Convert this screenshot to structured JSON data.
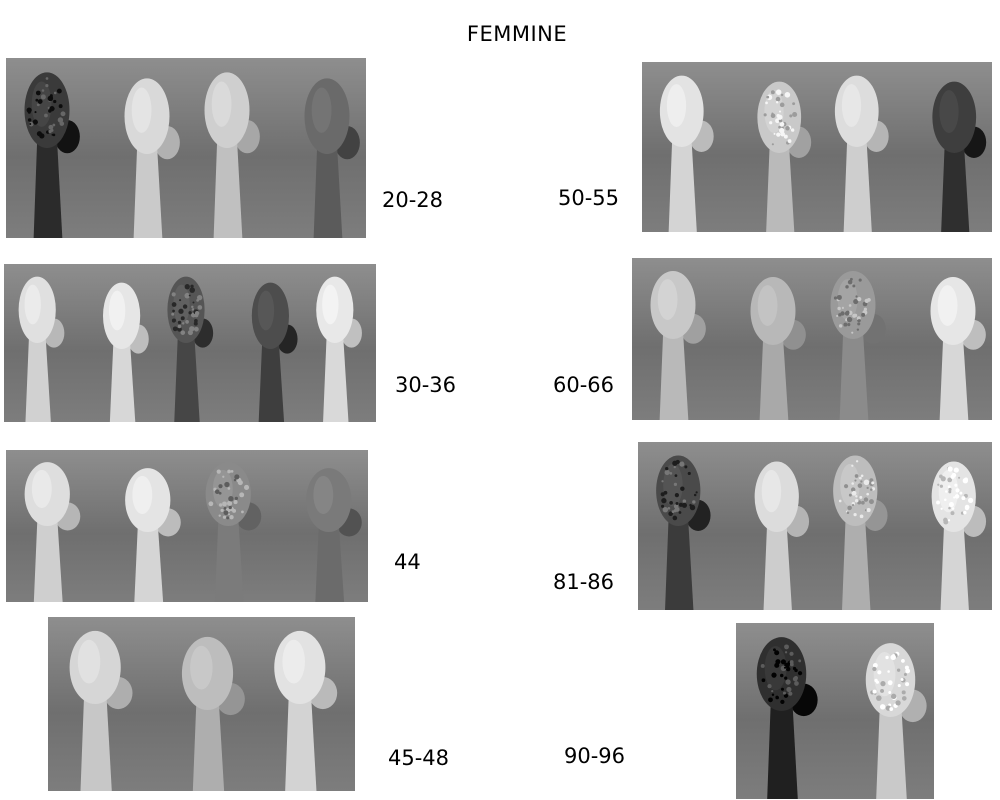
{
  "title": "FEMMINE",
  "plates": [
    {
      "id": "p1",
      "label": "20-28",
      "bones": [
        {
          "tone": "#3a3a3a",
          "speckle": true
        },
        {
          "tone": "#d9d9d9"
        },
        {
          "tone": "#cfcfcf"
        },
        {
          "tone": "#6a6a6a"
        }
      ]
    },
    {
      "id": "p2",
      "label": "30-36",
      "bones": [
        {
          "tone": "#e0e0e0"
        },
        {
          "tone": "#e6e6e6"
        },
        {
          "tone": "#555555",
          "speckle": true
        },
        {
          "tone": "#4d4d4d"
        },
        {
          "tone": "#e8e8e8"
        }
      ]
    },
    {
      "id": "p3",
      "label": "44",
      "bones": [
        {
          "tone": "#dedede"
        },
        {
          "tone": "#e4e4e4"
        },
        {
          "tone": "#8a8a8a",
          "speckle": true
        },
        {
          "tone": "#7a7a7a"
        }
      ]
    },
    {
      "id": "p4",
      "label": "45-48",
      "bones": [
        {
          "tone": "#d6d6d6"
        },
        {
          "tone": "#bdbdbd"
        },
        {
          "tone": "#e2e2e2"
        }
      ]
    },
    {
      "id": "p5",
      "label": "50-55",
      "bones": [
        {
          "tone": "#e3e3e3"
        },
        {
          "tone": "#c9c9c9",
          "speckle": true
        },
        {
          "tone": "#dddddd"
        },
        {
          "tone": "#3e3e3e"
        }
      ]
    },
    {
      "id": "p6",
      "label": "60-66",
      "bones": [
        {
          "tone": "#c8c8c8"
        },
        {
          "tone": "#b8b8b8"
        },
        {
          "tone": "#9a9a9a",
          "speckle": true
        },
        {
          "tone": "#e6e6e6"
        }
      ]
    },
    {
      "id": "p7",
      "label": "81-86",
      "bones": [
        {
          "tone": "#4a4a4a",
          "speckle": true
        },
        {
          "tone": "#dcdcdc"
        },
        {
          "tone": "#bdbdbd",
          "speckle": true
        },
        {
          "tone": "#e4e4e4",
          "speckle": true
        }
      ]
    },
    {
      "id": "p8",
      "label": "90-96",
      "bones": [
        {
          "tone": "#2f2f2f",
          "speckle": true
        },
        {
          "tone": "#d8d8d8",
          "speckle": true
        }
      ]
    }
  ]
}
